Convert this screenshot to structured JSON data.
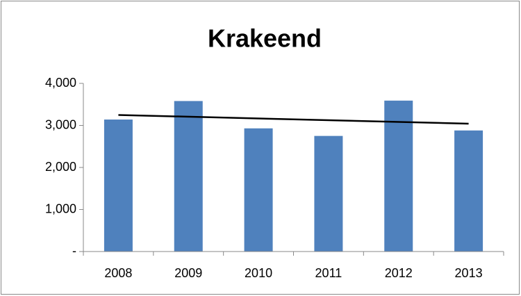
{
  "chart_data": {
    "type": "bar",
    "title": "Krakeend",
    "categories": [
      "2008",
      "2009",
      "2010",
      "2011",
      "2012",
      "2013"
    ],
    "values": [
      3140,
      3580,
      2930,
      2750,
      3590,
      2880
    ],
    "color": "#4f81bd",
    "trendline": "linear",
    "ylim": [
      0,
      4000
    ],
    "yticks": [
      {
        "value": 0,
        "label": "-"
      },
      {
        "value": 1000,
        "label": "1,000"
      },
      {
        "value": 2000,
        "label": "2,000"
      },
      {
        "value": 3000,
        "label": "3,000"
      },
      {
        "value": 4000,
        "label": "4,000"
      }
    ],
    "grid": false
  }
}
